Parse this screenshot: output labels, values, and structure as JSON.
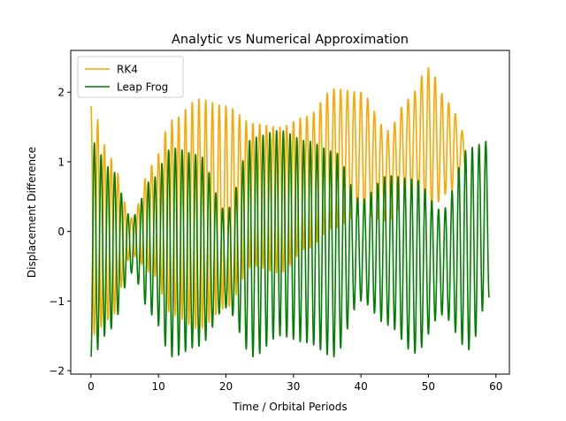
{
  "chart_data": {
    "type": "line",
    "title": "Analytic vs Numerical Approximation",
    "xlabel": "Time / Orbital Periods",
    "ylabel": "Displacement Difference",
    "xlim": [
      -3,
      62
    ],
    "ylim": [
      -2.05,
      2.6
    ],
    "xticks": [
      0,
      10,
      20,
      30,
      40,
      50,
      60
    ],
    "yticks": [
      -2,
      -1,
      0,
      1,
      2
    ],
    "grid": false,
    "legend_position": "top-left",
    "series": [
      {
        "name": "RK4",
        "color": "#ffa500",
        "x_range": [
          0,
          55.5
        ],
        "sample_points": [
          {
            "x": 0.0,
            "upper": 1.8,
            "lower": -1.5
          },
          {
            "x": 3.0,
            "upper": 1.05,
            "lower": -1.25
          },
          {
            "x": 6.0,
            "upper": 0.2,
            "lower": -0.35
          },
          {
            "x": 9.0,
            "upper": 0.95,
            "lower": -0.6
          },
          {
            "x": 12.0,
            "upper": 1.6,
            "lower": -1.2
          },
          {
            "x": 16.0,
            "upper": 1.9,
            "lower": -1.4
          },
          {
            "x": 20.0,
            "upper": 1.8,
            "lower": -1.1
          },
          {
            "x": 24.0,
            "upper": 1.55,
            "lower": -0.5
          },
          {
            "x": 28.0,
            "upper": 1.5,
            "lower": -0.6
          },
          {
            "x": 32.0,
            "upper": 1.65,
            "lower": -0.25
          },
          {
            "x": 36.0,
            "upper": 2.05,
            "lower": 0.05
          },
          {
            "x": 40.0,
            "upper": 2.0,
            "lower": 0.25
          },
          {
            "x": 44.0,
            "upper": 1.45,
            "lower": 0.15
          },
          {
            "x": 47.0,
            "upper": 1.9,
            "lower": 0.5
          },
          {
            "x": 50.0,
            "upper": 2.35,
            "lower": 0.3
          },
          {
            "x": 53.0,
            "upper": 1.85,
            "lower": 0.55
          },
          {
            "x": 55.5,
            "upper": 1.4,
            "lower": 0.85
          }
        ]
      },
      {
        "name": "Leap Frog",
        "color": "#008000",
        "x_range": [
          0,
          59
        ],
        "sample_points": [
          {
            "x": 0.0,
            "upper": 1.3,
            "lower": -1.8
          },
          {
            "x": 3.0,
            "upper": 0.9,
            "lower": -1.4
          },
          {
            "x": 6.0,
            "upper": 0.2,
            "lower": -0.6
          },
          {
            "x": 9.0,
            "upper": 0.75,
            "lower": -1.2
          },
          {
            "x": 12.0,
            "upper": 1.2,
            "lower": -1.8
          },
          {
            "x": 16.0,
            "upper": 1.1,
            "lower": -1.65
          },
          {
            "x": 20.0,
            "upper": 0.3,
            "lower": -1.1
          },
          {
            "x": 24.0,
            "upper": 1.35,
            "lower": -1.8
          },
          {
            "x": 28.0,
            "upper": 1.45,
            "lower": -1.5
          },
          {
            "x": 32.0,
            "upper": 1.3,
            "lower": -1.6
          },
          {
            "x": 36.0,
            "upper": 1.15,
            "lower": -1.8
          },
          {
            "x": 40.0,
            "upper": 0.45,
            "lower": -1.0
          },
          {
            "x": 44.0,
            "upper": 0.8,
            "lower": -1.35
          },
          {
            "x": 48.0,
            "upper": 0.75,
            "lower": -1.75
          },
          {
            "x": 52.0,
            "upper": 0.3,
            "lower": -1.2
          },
          {
            "x": 56.0,
            "upper": 1.2,
            "lower": -1.7
          },
          {
            "x": 59.0,
            "upper": 1.3,
            "lower": -0.95
          }
        ],
        "oscillation_period": 1.0
      }
    ]
  }
}
